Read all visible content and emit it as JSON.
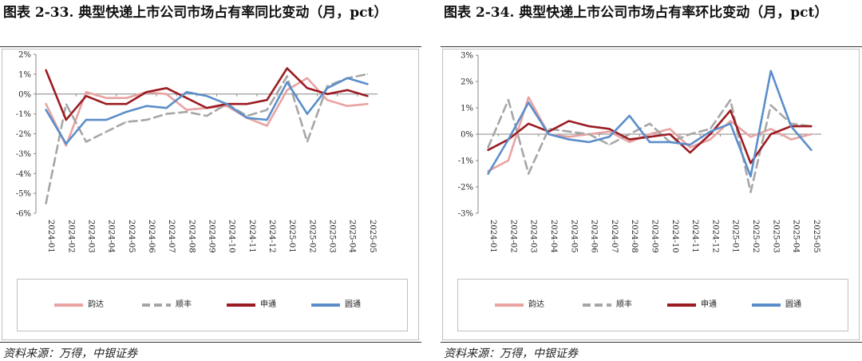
{
  "panels": [
    {
      "title": "图表 2-33. 典型快递上市公司市场占有率同比变动（月，pct）",
      "source": "资料来源：万得，中银证券",
      "chart_data": {
        "type": "line",
        "categories": [
          "2024-01",
          "2024-02",
          "2024-03",
          "2024-04",
          "2024-05",
          "2024-06",
          "2024-07",
          "2024-08",
          "2024-09",
          "2024-10",
          "2024-11",
          "2024-12",
          "2025-01",
          "2025-02",
          "2025-03",
          "2025-04",
          "2025-05"
        ],
        "y_ticks": [
          "2%",
          "1%",
          "0%",
          "-1%",
          "-2%",
          "-3%",
          "-4%",
          "-5%",
          "-6%"
        ],
        "ylim": [
          -6,
          2
        ],
        "unit": "%",
        "legend_position": "bottom",
        "series": [
          {
            "name": "韵达",
            "color": "#e8a3a3",
            "dash": "solid",
            "values": [
              -0.5,
              -2.6,
              0.1,
              -0.2,
              -0.2,
              0.1,
              0.0,
              -0.8,
              -0.7,
              -0.6,
              -1.2,
              -1.6,
              0.2,
              0.8,
              -0.3,
              -0.6,
              -0.5
            ]
          },
          {
            "name": "顺丰",
            "color": "#a6a6a6",
            "dash": "dashed",
            "values": [
              -5.5,
              -0.5,
              -2.4,
              -1.9,
              -1.4,
              -1.3,
              -1.0,
              -0.9,
              -1.1,
              -0.5,
              -1.1,
              -0.8,
              0.9,
              -2.4,
              0.4,
              0.8,
              1.0
            ]
          },
          {
            "name": "申通",
            "color": "#9b1c22",
            "dash": "solid",
            "values": [
              1.2,
              -1.3,
              -0.1,
              -0.5,
              -0.5,
              0.1,
              0.3,
              -0.2,
              -0.7,
              -0.5,
              -0.5,
              -0.3,
              1.3,
              0.3,
              0.0,
              0.2,
              -0.1
            ]
          },
          {
            "name": "圆通",
            "color": "#5b8ec9",
            "dash": "solid",
            "values": [
              -0.8,
              -2.5,
              -1.3,
              -1.3,
              -0.9,
              -0.6,
              -0.7,
              0.1,
              -0.1,
              -0.5,
              -1.2,
              -1.3,
              0.6,
              -1.0,
              0.3,
              0.8,
              0.5
            ]
          }
        ]
      }
    },
    {
      "title": "图表 2-34. 典型快递上市公司市场占有率环比变动（月，pct）",
      "source": "资料来源：万得，中银证券",
      "chart_data": {
        "type": "line",
        "categories": [
          "2024-01",
          "2024-02",
          "2024-03",
          "2024-04",
          "2024-05",
          "2024-06",
          "2024-07",
          "2024-08",
          "2024-09",
          "2024-10",
          "2024-11",
          "2024-12",
          "2025-01",
          "2025-02",
          "2025-03",
          "2025-04",
          "2025-05"
        ],
        "y_ticks": [
          "3%",
          "2%",
          "1%",
          "0%",
          "-1%",
          "-2%",
          "-3%"
        ],
        "ylim": [
          -3,
          3
        ],
        "unit": "%",
        "legend_position": "bottom",
        "series": [
          {
            "name": "韵达",
            "color": "#e8a3a3",
            "dash": "solid",
            "values": [
              -1.4,
              -1.0,
              1.4,
              0.0,
              -0.1,
              0.0,
              0.1,
              -0.3,
              0.0,
              0.2,
              -0.5,
              -0.2,
              0.5,
              -0.1,
              0.2,
              -0.2,
              0.0
            ]
          },
          {
            "name": "顺丰",
            "color": "#a6a6a6",
            "dash": "dashed",
            "values": [
              -0.5,
              1.3,
              -1.5,
              0.2,
              0.1,
              0.0,
              -0.4,
              0.0,
              0.4,
              -0.3,
              0.0,
              0.2,
              1.3,
              -2.2,
              1.1,
              0.4,
              0.3
            ]
          },
          {
            "name": "申通",
            "color": "#9b1c22",
            "dash": "solid",
            "values": [
              -0.6,
              -0.2,
              0.4,
              0.1,
              0.5,
              0.3,
              0.2,
              -0.2,
              -0.1,
              0.0,
              -0.7,
              0.0,
              0.9,
              -1.1,
              0.0,
              0.3,
              0.3
            ]
          },
          {
            "name": "圆通",
            "color": "#5b8ec9",
            "dash": "solid",
            "values": [
              -1.5,
              -0.2,
              1.2,
              0.0,
              -0.2,
              -0.3,
              -0.1,
              0.7,
              -0.3,
              -0.3,
              -0.4,
              0.1,
              0.4,
              -1.6,
              2.4,
              0.3,
              -0.6
            ]
          }
        ]
      }
    }
  ]
}
